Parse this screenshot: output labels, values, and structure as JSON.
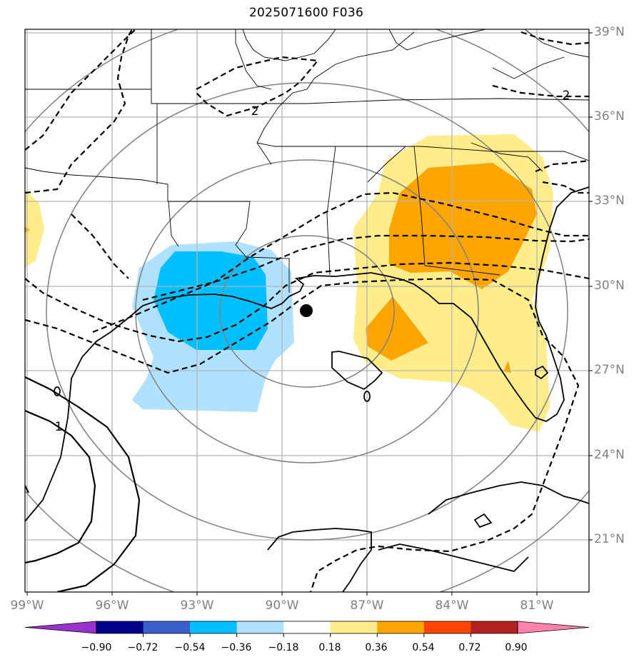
{
  "title": "2025071600 F036",
  "latitude_labels": [
    "39°N",
    "36°N",
    "33°N",
    "30°N",
    "27°N",
    "24°N",
    "21°N"
  ],
  "longitude_labels": [
    "99°W",
    "96°W",
    "93°W",
    "90°W",
    "87°W",
    "84°W",
    "81°W"
  ],
  "contour_labels": [
    "2",
    "2",
    "1"
  ],
  "storm_marker": {
    "lon": -89.3,
    "lat": 29.2,
    "color": "#000000"
  },
  "colorbar": {
    "ticks": [
      "−0.90",
      "−0.72",
      "−0.54",
      "−0.36",
      "−0.18",
      "0.18",
      "0.36",
      "0.54",
      "0.72",
      "0.90"
    ],
    "colors": [
      "#9a32cd",
      "#00008b",
      "#3a5fcd",
      "#00bfff",
      "#b0e2ff",
      "#ffffff",
      "#ffec8b",
      "#ffa500",
      "#ff4500",
      "#b22222",
      "#ff82ab"
    ]
  },
  "fill_colors": {
    "light_blue": "#b0e2ff",
    "blue": "#00bfff",
    "yellow": "#ffec8b",
    "orange": "#ffa500"
  },
  "extent": {
    "lon_min": -99,
    "lon_max": -79,
    "lat_min": 18,
    "lat_max": 39
  }
}
